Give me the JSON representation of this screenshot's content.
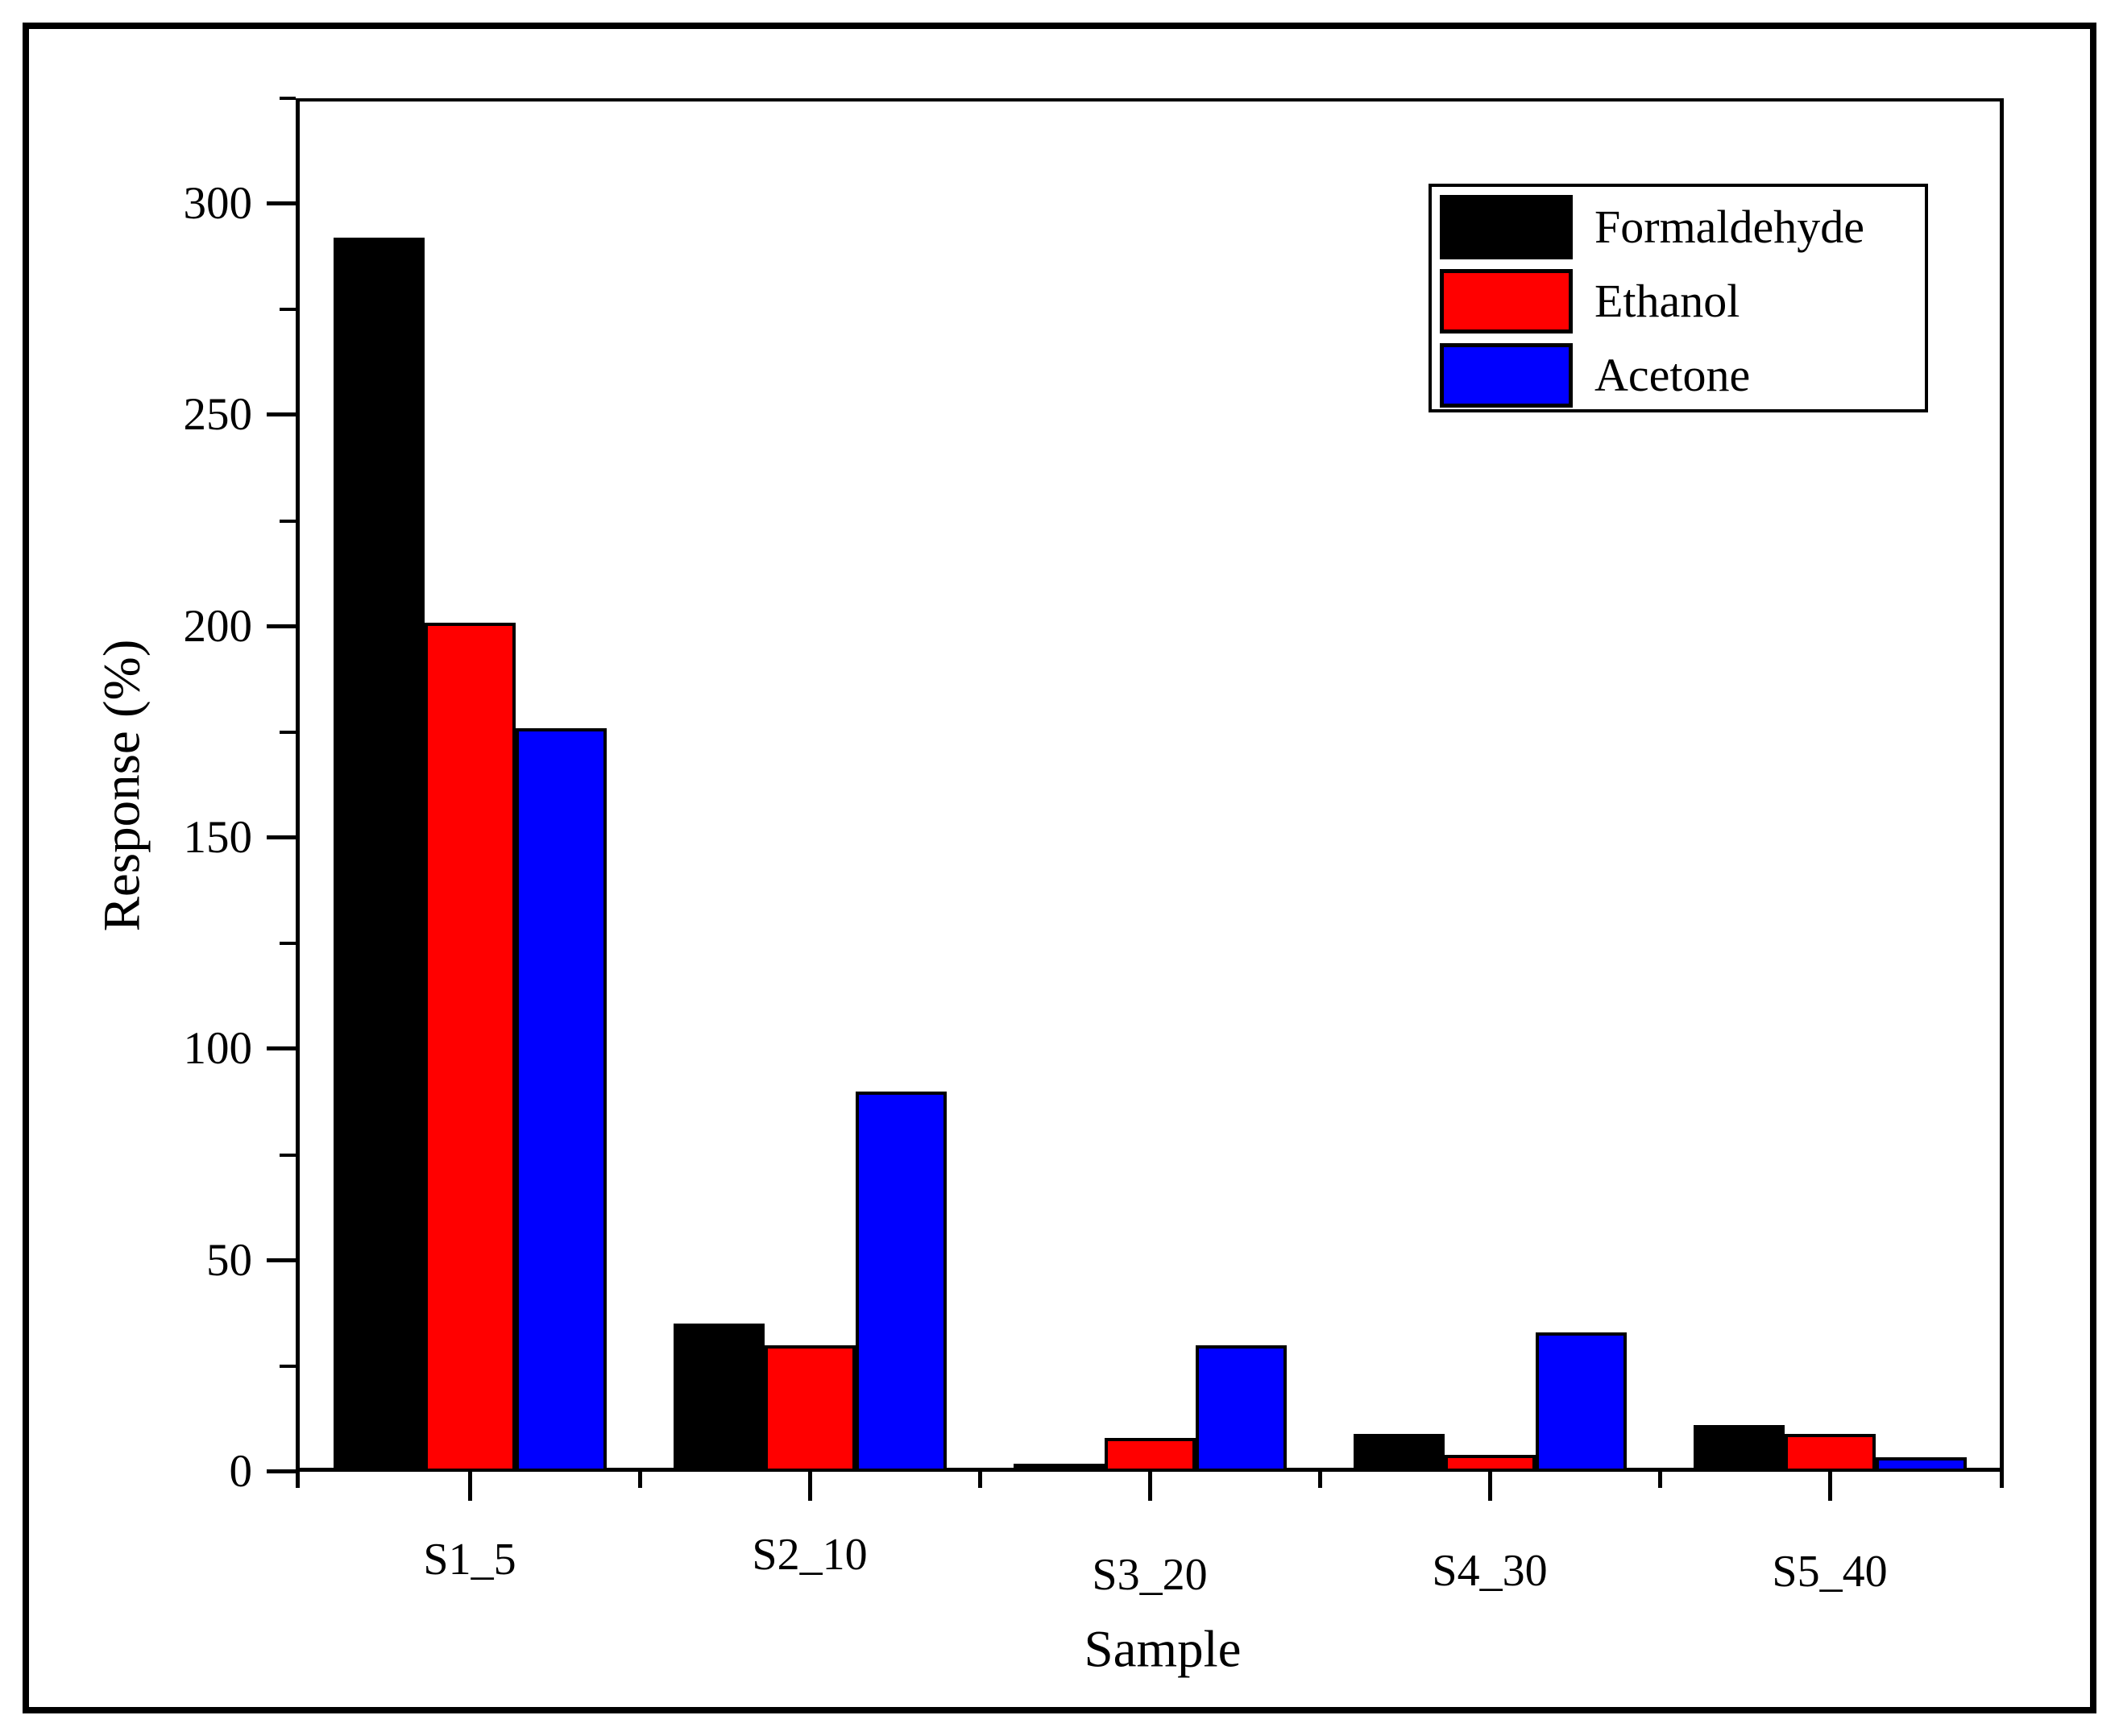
{
  "figure": {
    "background": "#ffffff",
    "border_color": "#000000"
  },
  "chart_data": {
    "type": "bar",
    "title": "",
    "xlabel": "Sample",
    "ylabel": "Response (%)",
    "categories": [
      "S1_5",
      "S2_10",
      "S3_20",
      "S4_30",
      "S5_40"
    ],
    "series": [
      {
        "name": "Formaldehyde",
        "color": "#000000",
        "values": [
          292,
          35,
          2,
          9,
          11
        ]
      },
      {
        "name": "Ethanol",
        "color": "#ff0000",
        "values": [
          201,
          30,
          8,
          4,
          9
        ]
      },
      {
        "name": "Acetone",
        "color": "#0000ff",
        "values": [
          176,
          90,
          30,
          33,
          3.5
        ]
      }
    ],
    "ylim": [
      0,
      325
    ],
    "yticks": [
      0,
      50,
      100,
      150,
      200,
      250,
      300
    ],
    "ytick_labels": [
      "0",
      "50",
      "100",
      "150",
      "200",
      "250",
      "300"
    ],
    "ytick_minor_interval": 25,
    "grid": false,
    "legend_position": "top-right",
    "bar_outline_color": "#000000",
    "axis_color": "#000000"
  }
}
